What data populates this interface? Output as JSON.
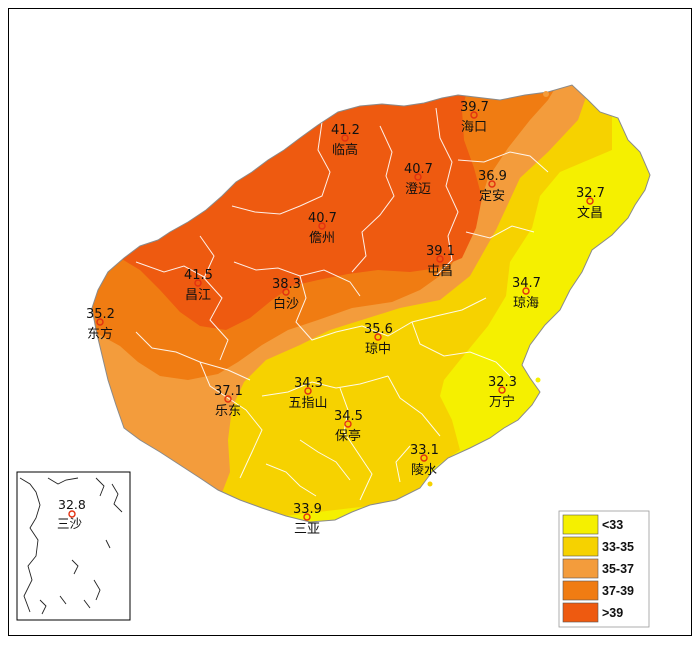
{
  "colors": {
    "lt33": "#f5f000",
    "c33_35": "#f6d200",
    "c35_37": "#f39c3c",
    "c37_39": "#f07c12",
    "gt39": "#ee5a10",
    "marker": "#e23010",
    "boundary": "#ffffff",
    "frame": "#000000"
  },
  "stations": [
    {
      "id": "haikou",
      "name": "海口",
      "value": "39.7"
    },
    {
      "id": "lingao",
      "name": "临高",
      "value": "41.2"
    },
    {
      "id": "chengmai",
      "name": "澄迈",
      "value": "40.7"
    },
    {
      "id": "dingan",
      "name": "定安",
      "value": "36.9"
    },
    {
      "id": "wenchang",
      "name": "文昌",
      "value": "32.7"
    },
    {
      "id": "danzhou",
      "name": "儋州",
      "value": "40.7"
    },
    {
      "id": "tunchang",
      "name": "屯昌",
      "value": "39.1"
    },
    {
      "id": "changjiang",
      "name": "昌江",
      "value": "41.5"
    },
    {
      "id": "baisha",
      "name": "白沙",
      "value": "38.3"
    },
    {
      "id": "qionghai",
      "name": "琼海",
      "value": "34.7"
    },
    {
      "id": "dongfang",
      "name": "东方",
      "value": "35.2"
    },
    {
      "id": "qiongzhong",
      "name": "琼中",
      "value": "35.6"
    },
    {
      "id": "ledong",
      "name": "乐东",
      "value": "37.1"
    },
    {
      "id": "wuzhishan",
      "name": "五指山",
      "value": "34.3"
    },
    {
      "id": "wanning",
      "name": "万宁",
      "value": "32.3"
    },
    {
      "id": "baoting",
      "name": "保亭",
      "value": "34.5"
    },
    {
      "id": "lingshui",
      "name": "陵水",
      "value": "33.1"
    },
    {
      "id": "sanya",
      "name": "三亚",
      "value": "33.9"
    }
  ],
  "inset": {
    "name": "三沙",
    "value": "32.8"
  },
  "legend": [
    {
      "label": "<33",
      "color": "#f5f000"
    },
    {
      "label": "33-35",
      "color": "#f6d200"
    },
    {
      "label": "35-37",
      "color": "#f39c3c"
    },
    {
      "label": "37-39",
      "color": "#f07c12"
    },
    {
      "label": ">39",
      "color": "#ee5a10"
    }
  ]
}
